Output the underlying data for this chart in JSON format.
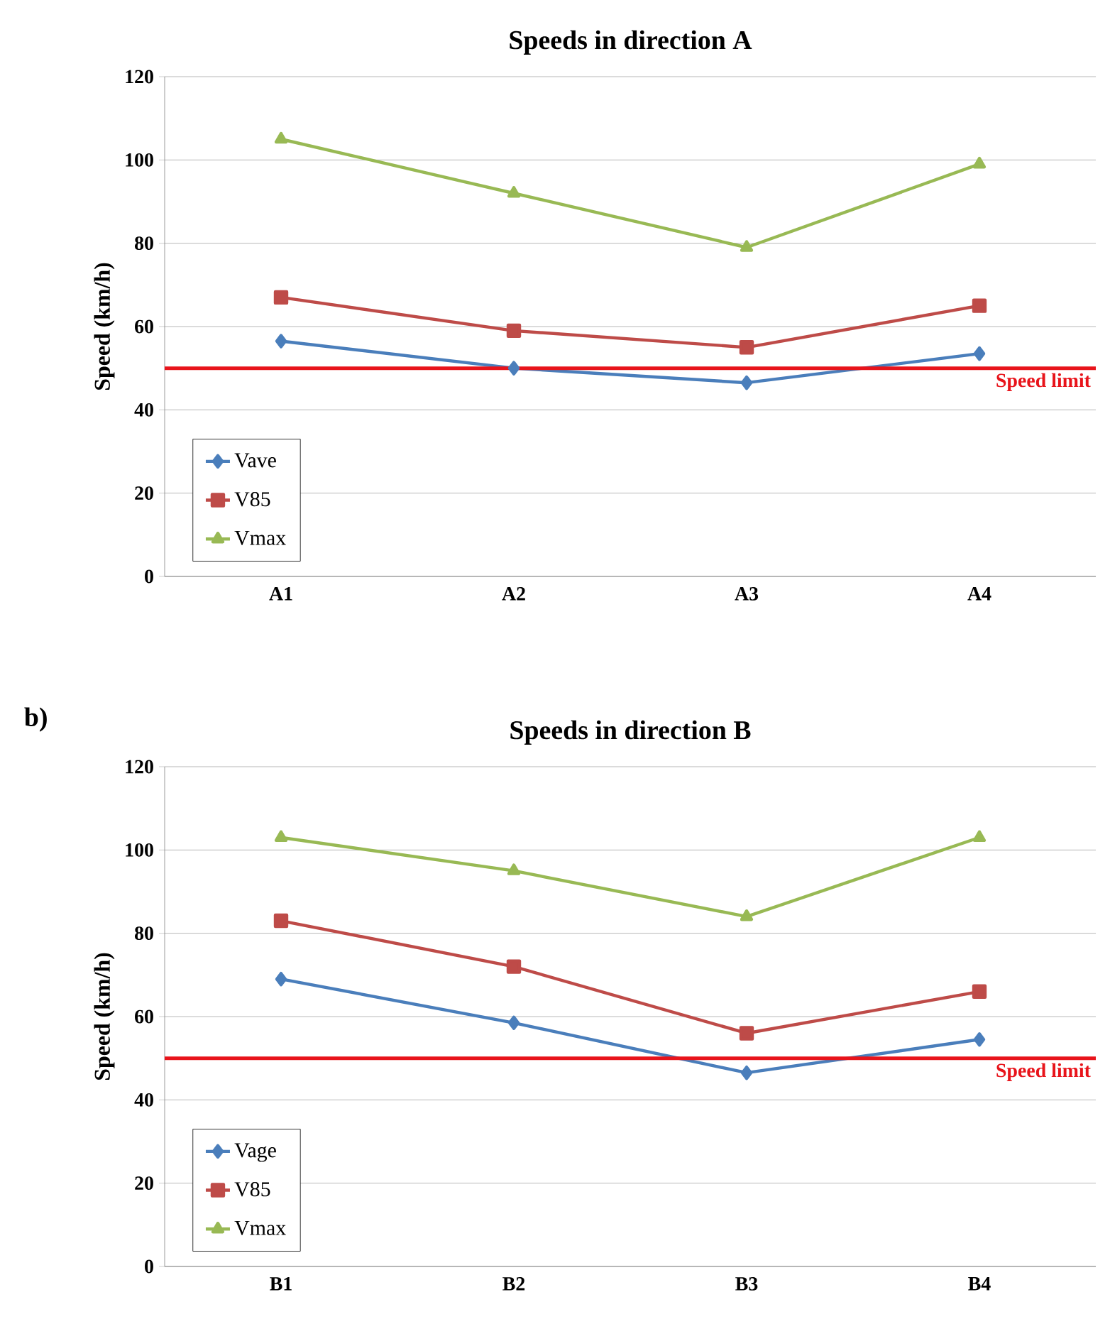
{
  "chart_data": [
    {
      "type": "line",
      "title": "Speeds in direction A",
      "ylabel": "Speed (km/h)",
      "categories": [
        "A1",
        "A2",
        "A3",
        "A4"
      ],
      "series": [
        {
          "name": "Vave",
          "color": "#4a7ebb",
          "marker": "diamond",
          "values": [
            56.5,
            50,
            46.5,
            53.5
          ]
        },
        {
          "name": "V85",
          "color": "#be4b48",
          "marker": "square",
          "values": [
            67,
            59,
            55,
            65
          ]
        },
        {
          "name": "Vmax",
          "color": "#98b954",
          "marker": "triangle",
          "values": [
            105,
            92,
            79,
            99
          ]
        }
      ],
      "ylim": [
        0,
        120
      ],
      "yticks": [
        0,
        20,
        40,
        60,
        80,
        100,
        120
      ],
      "grid": "y",
      "legend": "bottom left",
      "ref_lines": [
        {
          "axis": "y",
          "value": 50,
          "label": "Speed limit",
          "color": "#e8141b"
        }
      ]
    },
    {
      "type": "line",
      "title": "Speeds in direction B",
      "ylabel": "Speed (km/h)",
      "categories": [
        "B1",
        "B2",
        "B3",
        "B4"
      ],
      "series": [
        {
          "name": "Vage",
          "color": "#4a7ebb",
          "marker": "diamond",
          "values": [
            69,
            58.5,
            46.5,
            54.5
          ]
        },
        {
          "name": "V85",
          "color": "#be4b48",
          "marker": "square",
          "values": [
            83,
            72,
            56,
            66
          ]
        },
        {
          "name": "Vmax",
          "color": "#98b954",
          "marker": "triangle",
          "values": [
            103,
            95,
            84,
            103
          ]
        }
      ],
      "ylim": [
        0,
        120
      ],
      "yticks": [
        0,
        20,
        40,
        60,
        80,
        100,
        120
      ],
      "grid": "y",
      "legend": "bottom left",
      "ref_lines": [
        {
          "axis": "y",
          "value": 50,
          "label": "Speed limit",
          "color": "#e8141b"
        }
      ],
      "annotations": [
        "b)"
      ]
    }
  ]
}
